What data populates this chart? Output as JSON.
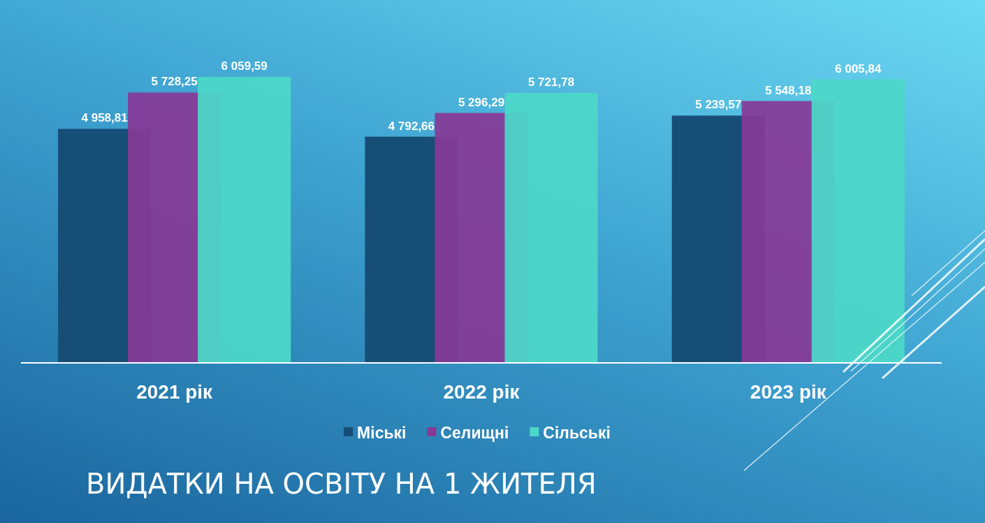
{
  "chart_data": {
    "type": "bar",
    "title": "ВИДАТКИ НА ОСВІТУ НА 1 ЖИТЕЛЯ",
    "categories": [
      "2021 рік",
      "2022 рік",
      "2023 рік"
    ],
    "series": [
      {
        "name": "Міські",
        "color": "#174e78",
        "values": [
          4958.81,
          4792.66,
          5239.57
        ],
        "value_labels": [
          "4 958,81",
          "4 792,66",
          "5 239,57"
        ]
      },
      {
        "name": "Селищні",
        "color": "#873a97",
        "values": [
          5728.25,
          5296.29,
          5548.18
        ],
        "value_labels": [
          "5 728,25",
          "5 296,29",
          "5 548,18"
        ]
      },
      {
        "name": "Сільські",
        "color": "#4cd8c8",
        "values": [
          6059.59,
          5721.78,
          6005.84
        ],
        "value_labels": [
          "6 059,59",
          "5 721,78",
          "6 005,84"
        ]
      }
    ],
    "legend": "bottom"
  }
}
